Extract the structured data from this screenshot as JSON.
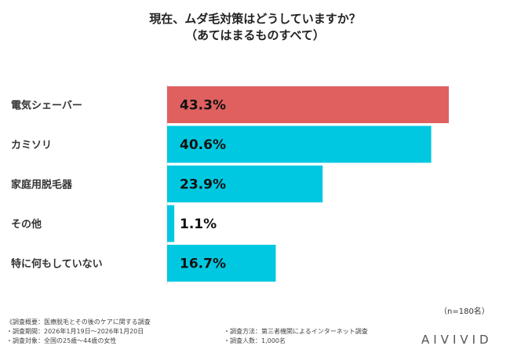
{
  "chart_data": {
    "type": "bar",
    "orientation": "horizontal",
    "title": "現在、ムダ毛対策はどうしていますか？",
    "subtitle": "（あてはまるものすべて）",
    "categories": [
      "電気シェーバー",
      "カミソリ",
      "家庭用脱毛器",
      "その他",
      "特に何もしていない"
    ],
    "values": [
      43.3,
      40.6,
      23.9,
      1.1,
      16.7
    ],
    "value_labels": [
      "43.3%",
      "40.6%",
      "23.9%",
      "1.1%",
      "16.7%"
    ],
    "colors": [
      "#e06060",
      "#00c8e0",
      "#00c8e0",
      "#00c8e0",
      "#00c8e0"
    ],
    "xlim": [
      0,
      43.3
    ],
    "grid": false,
    "legend": "none"
  },
  "note_n": "（n=180名）",
  "footnotes": {
    "left": [
      "《調査概要：医療脱毛とその後のケアに関する調査",
      "・調査期間：2026年1月19日～2026年1月20日",
      "・調査対象：全国の25歳～44歳の女性"
    ],
    "right": [
      "・調査方法：第三者機関によるインターネット調査",
      "・調査人数：1,000名"
    ]
  },
  "logo": "AIVIVID"
}
